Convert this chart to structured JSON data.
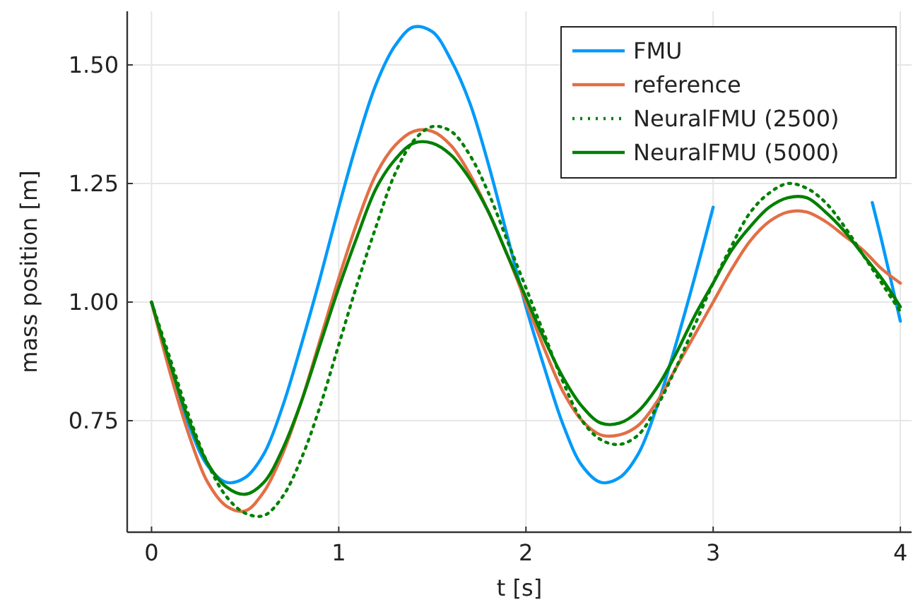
{
  "chart_data": {
    "type": "line",
    "xlabel": "t [s]",
    "ylabel": "mass position [m]",
    "xlim": [
      -0.13,
      4.06
    ],
    "xticks": [
      0,
      1,
      2,
      3,
      4
    ],
    "ylim": [
      0.515,
      1.613
    ],
    "yticks": [
      {
        "value": 0.75,
        "label": "0.75"
      },
      {
        "value": 1.0,
        "label": "1.00"
      },
      {
        "value": 1.25,
        "label": "1.25"
      },
      {
        "value": 1.5,
        "label": "1.50"
      }
    ],
    "grid": true,
    "legend": "top right",
    "x": [
      0,
      0.1,
      0.2,
      0.3,
      0.4,
      0.5,
      0.6,
      0.7,
      0.8,
      0.9,
      1.0,
      1.1,
      1.2,
      1.3,
      1.4,
      1.5,
      1.6,
      1.7,
      1.8,
      1.9,
      2.0,
      2.1,
      2.2,
      2.3,
      2.4,
      2.5,
      2.6,
      2.7,
      2.8,
      2.9,
      3.0,
      3.1,
      3.2,
      3.3,
      3.4,
      3.5,
      3.6,
      3.7,
      3.8,
      3.9,
      4.0
    ],
    "series": [
      {
        "name": "FMU",
        "color": "#009af9",
        "line_style": "solid",
        "x": [
          0,
          0.1,
          0.2,
          0.3,
          0.4,
          0.5,
          0.6,
          0.7,
          0.8,
          0.9,
          1.0,
          1.1,
          1.2,
          1.3,
          1.4,
          1.5,
          1.6,
          1.7,
          1.8,
          1.9,
          2.0,
          2.1,
          2.2,
          2.3,
          2.4,
          2.5,
          2.6,
          2.7,
          2.8,
          2.9,
          3.0,
          3.1,
          3.85,
          3.9,
          4.0
        ],
        "values": [
          1.0,
          0.86,
          0.74,
          0.655,
          0.62,
          0.63,
          0.68,
          0.78,
          0.91,
          1.05,
          1.2,
          1.34,
          1.46,
          1.54,
          1.58,
          1.57,
          1.51,
          1.42,
          1.29,
          1.14,
          0.99,
          0.86,
          0.74,
          0.655,
          0.62,
          0.63,
          0.68,
          0.78,
          0.91,
          1.05,
          1.2,
          null,
          1.21,
          1.13,
          0.96
        ]
      },
      {
        "name": "reference",
        "color": "#e26f46",
        "line_style": "solid",
        "values": [
          1.0,
          0.85,
          0.72,
          0.62,
          0.57,
          0.56,
          0.6,
          0.68,
          0.79,
          0.92,
          1.05,
          1.17,
          1.27,
          1.33,
          1.36,
          1.36,
          1.33,
          1.27,
          1.19,
          1.1,
          1.0,
          0.9,
          0.81,
          0.75,
          0.72,
          0.72,
          0.74,
          0.79,
          0.86,
          0.93,
          1.0,
          1.07,
          1.13,
          1.17,
          1.19,
          1.19,
          1.17,
          1.14,
          1.11,
          1.07,
          1.04
        ]
      },
      {
        "name": "NeuralFMU (2500)",
        "color": "#008000",
        "line_style": "dotted",
        "values": [
          1.0,
          0.88,
          0.76,
          0.66,
          0.59,
          0.555,
          0.55,
          0.59,
          0.67,
          0.78,
          0.91,
          1.04,
          1.16,
          1.27,
          1.34,
          1.37,
          1.36,
          1.31,
          1.23,
          1.13,
          1.03,
          0.93,
          0.83,
          0.75,
          0.71,
          0.7,
          0.72,
          0.78,
          0.86,
          0.95,
          1.04,
          1.12,
          1.19,
          1.23,
          1.25,
          1.24,
          1.21,
          1.16,
          1.1,
          1.04,
          0.98
        ]
      },
      {
        "name": "NeuralFMU (5000)",
        "color": "#008000",
        "line_style": "solid",
        "values": [
          1.0,
          0.87,
          0.75,
          0.66,
          0.61,
          0.595,
          0.62,
          0.69,
          0.79,
          0.91,
          1.03,
          1.14,
          1.24,
          1.3,
          1.335,
          1.335,
          1.31,
          1.26,
          1.19,
          1.1,
          1.01,
          0.92,
          0.84,
          0.78,
          0.745,
          0.745,
          0.77,
          0.82,
          0.89,
          0.97,
          1.04,
          1.11,
          1.16,
          1.2,
          1.22,
          1.22,
          1.19,
          1.15,
          1.1,
          1.05,
          0.99
        ]
      }
    ]
  }
}
